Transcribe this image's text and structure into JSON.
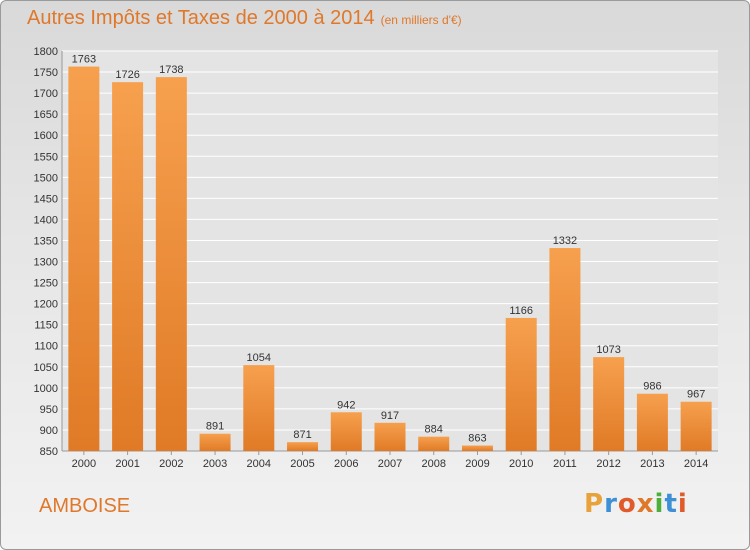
{
  "header": {
    "title": "Autres Impôts et Taxes de 2000 à 2014",
    "subtitle": "(en milliers d'€)"
  },
  "footer": {
    "city": "AMBOISE",
    "logo": "Proxiti",
    "logo_colors": [
      "#e8a23a",
      "#3d8fd6",
      "#e05a2a",
      "#e0782a",
      "#4caf3c",
      "#3d8fd6",
      "#e05a2a"
    ]
  },
  "colors": {
    "bar_light": "#f6a04e",
    "bar_dark": "#e07a26",
    "accent": "#e0782a",
    "grid": "#ffffff",
    "text": "#333333"
  },
  "chart_data": {
    "type": "bar",
    "title": "Autres Impôts et Taxes de 2000 à 2014",
    "subtitle": "(en milliers d'€)",
    "categories": [
      "2000",
      "2001",
      "2002",
      "2003",
      "2004",
      "2005",
      "2006",
      "2007",
      "2008",
      "2009",
      "2010",
      "2011",
      "2012",
      "2013",
      "2014"
    ],
    "values": [
      1763,
      1726,
      1738,
      891,
      1054,
      871,
      942,
      917,
      884,
      863,
      1166,
      1332,
      1073,
      986,
      967
    ],
    "ylim": [
      850,
      1800
    ],
    "ytick_step": 50,
    "grid": true,
    "legend": "none",
    "xlabel": "",
    "ylabel": ""
  }
}
